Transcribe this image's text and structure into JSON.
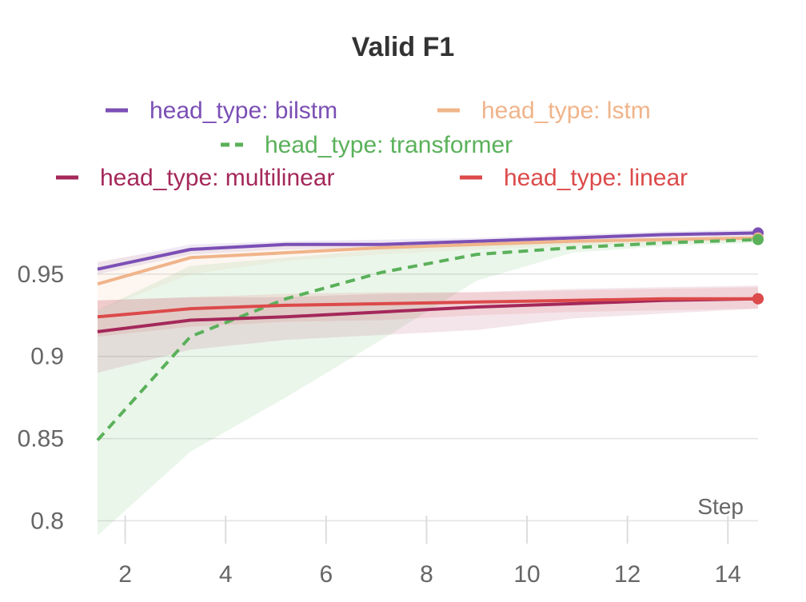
{
  "chart_data": {
    "type": "line",
    "title": "Valid F1",
    "xlabel": "Step",
    "ylabel": "",
    "xlim": [
      1.45,
      14.6
    ],
    "ylim": [
      0.79,
      1.0
    ],
    "grid": true,
    "legend_position": "top",
    "x_ticks": [
      2,
      4,
      6,
      8,
      10,
      12,
      14
    ],
    "y_ticks": [
      0.8,
      0.85,
      0.9,
      0.95
    ],
    "x_tick_labels": [
      "2",
      "4",
      "6",
      "8",
      "10",
      "12",
      "14"
    ],
    "y_tick_labels": [
      "0.8",
      "0.85",
      "0.9",
      "0.95"
    ],
    "series": [
      {
        "name": "head_type: bilstm",
        "color": "#7b4fb5",
        "dash": "solid",
        "x": [
          1.45,
          3.3,
          5.2,
          7.1,
          9.0,
          10.9,
          12.7,
          14.6
        ],
        "values": [
          0.953,
          0.965,
          0.968,
          0.968,
          0.97,
          0.972,
          0.974,
          0.975
        ],
        "lower": [
          0.95,
          0.962,
          0.965,
          0.966,
          0.968,
          0.97,
          0.972,
          0.973
        ],
        "upper": [
          0.957,
          0.968,
          0.97,
          0.971,
          0.972,
          0.974,
          0.976,
          0.977
        ]
      },
      {
        "name": "head_type: lstm",
        "color": "#f0b48a",
        "dash": "solid",
        "x": [
          1.45,
          3.3,
          5.2,
          7.1,
          9.0,
          10.9,
          12.7,
          14.6
        ],
        "values": [
          0.944,
          0.96,
          0.963,
          0.966,
          0.968,
          0.97,
          0.971,
          0.972
        ],
        "lower": [
          0.928,
          0.95,
          0.958,
          0.962,
          0.965,
          0.967,
          0.969,
          0.97
        ],
        "upper": [
          0.958,
          0.966,
          0.967,
          0.969,
          0.971,
          0.972,
          0.973,
          0.975
        ]
      },
      {
        "name": "head_type: transformer",
        "color": "#5ab15a",
        "dash": "dashed",
        "x": [
          1.45,
          3.3,
          5.2,
          7.1,
          9.0,
          10.9,
          12.7,
          14.6
        ],
        "values": [
          0.849,
          0.912,
          0.935,
          0.951,
          0.962,
          0.966,
          0.969,
          0.971
        ],
        "lower": [
          0.791,
          0.842,
          0.875,
          0.91,
          0.946,
          0.963,
          0.967,
          0.969
        ],
        "upper": [
          0.928,
          0.955,
          0.96,
          0.965,
          0.968,
          0.969,
          0.97,
          0.973
        ]
      },
      {
        "name": "head_type: multilinear",
        "color": "#a4285a",
        "dash": "solid",
        "x": [
          1.45,
          3.3,
          5.2,
          7.1,
          9.0,
          10.9,
          12.7,
          14.6
        ],
        "values": [
          0.915,
          0.922,
          0.924,
          0.927,
          0.93,
          0.932,
          0.934,
          0.935
        ],
        "lower": [
          0.89,
          0.904,
          0.91,
          0.913,
          0.916,
          0.923,
          0.926,
          0.929
        ],
        "upper": [
          0.934,
          0.936,
          0.936,
          0.938,
          0.939,
          0.941,
          0.942,
          0.943
        ]
      },
      {
        "name": "head_type: linear",
        "color": "#dc4a4a",
        "dash": "solid",
        "x": [
          1.45,
          3.3,
          5.2,
          7.1,
          9.0,
          10.9,
          12.7,
          14.6
        ],
        "values": [
          0.924,
          0.929,
          0.931,
          0.932,
          0.933,
          0.934,
          0.935,
          0.935
        ],
        "lower": [
          0.912,
          0.918,
          0.921,
          0.922,
          0.925,
          0.927,
          0.928,
          0.929
        ],
        "upper": [
          0.934,
          0.936,
          0.938,
          0.939,
          0.939,
          0.94,
          0.941,
          0.942
        ]
      }
    ]
  }
}
